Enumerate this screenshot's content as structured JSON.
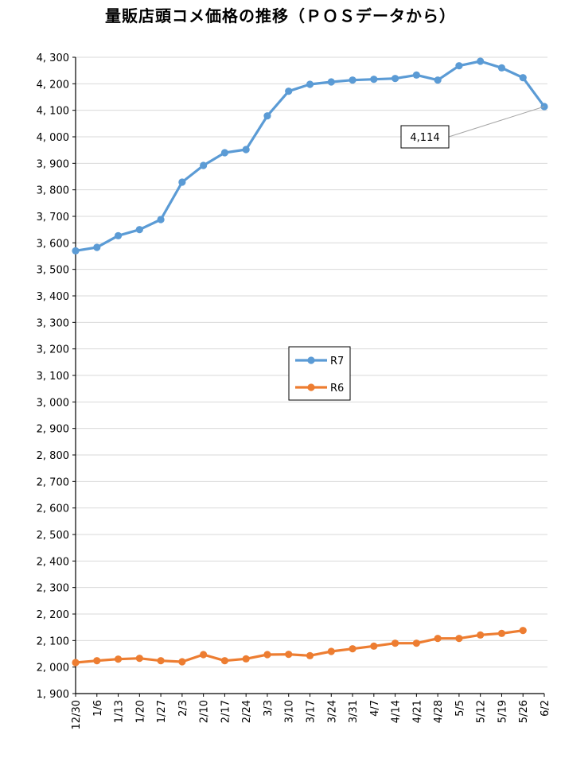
{
  "chart_data": {
    "type": "line",
    "title": "量販店頭コメ価格の推移（ＰＯＳデータから）",
    "xlabel": "",
    "ylabel": "",
    "categories": [
      "12/30",
      "1/6",
      "1/13",
      "1/20",
      "1/27",
      "2/3",
      "2/10",
      "2/17",
      "2/24",
      "3/3",
      "3/10",
      "3/17",
      "3/24",
      "3/31",
      "4/7",
      "4/14",
      "4/21",
      "4/28",
      "5/5",
      "5/12",
      "5/19",
      "5/26",
      "6/2"
    ],
    "ylim": [
      1900,
      4300
    ],
    "yticks": [
      1900,
      2000,
      2100,
      2200,
      2300,
      2400,
      2500,
      2600,
      2700,
      2800,
      2900,
      3000,
      3100,
      3200,
      3300,
      3400,
      3500,
      3600,
      3700,
      3800,
      3900,
      4000,
      4100,
      4200,
      4300
    ],
    "grid": true,
    "legend_position": "center",
    "series": [
      {
        "name": "R7",
        "color": "#5B9BD5",
        "values": [
          3570,
          3583,
          3627,
          3650,
          3688,
          3829,
          3892,
          3940,
          3952,
          4079,
          4172,
          4198,
          4207,
          4214,
          4217,
          4220,
          4233,
          4214,
          4268,
          4285,
          4260,
          4223,
          4114
        ]
      },
      {
        "name": "R6",
        "color": "#ED7D31",
        "values": [
          2017,
          2024,
          2030,
          2033,
          2024,
          2020,
          2047,
          2024,
          2031,
          2047,
          2048,
          2043,
          2059,
          2069,
          2079,
          2090,
          2090,
          2108,
          2108,
          2121,
          2127,
          2138,
          null
        ]
      }
    ],
    "annotation": {
      "text": "4,114",
      "series": "R7",
      "category": "6/2"
    }
  }
}
